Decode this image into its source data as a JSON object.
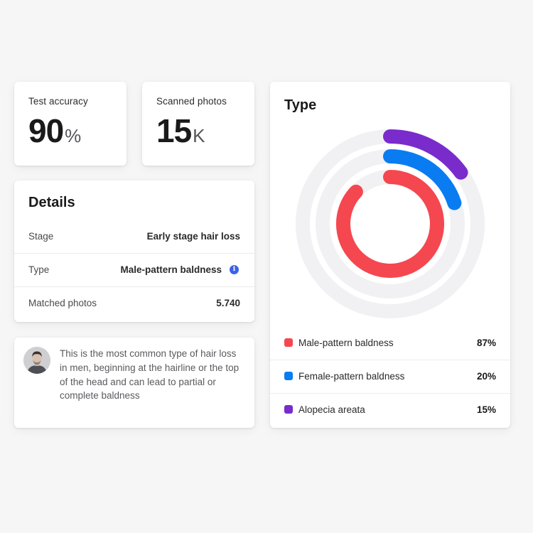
{
  "stats": {
    "accuracy": {
      "label": "Test accuracy",
      "value": "90",
      "unit": "%"
    },
    "scanned": {
      "label": "Scanned photos",
      "value": "15",
      "unit": "K"
    }
  },
  "details": {
    "title": "Details",
    "rows": [
      {
        "key": "Stage",
        "value": "Early stage hair loss"
      },
      {
        "key": "Type",
        "value": "Male-pattern baldness"
      },
      {
        "key": "Matched photos",
        "value": "5.740"
      }
    ],
    "info_icon": "info-icon"
  },
  "note": {
    "avatar_icon": "user-avatar",
    "text": "This is the most common type of hair loss in men, beginning at the hairline or the top of the head and can lead to partial or complete baldness"
  },
  "type_card": {
    "title": "Type",
    "track_color": "#f1f1f3",
    "legend": [
      {
        "label": "Male-pattern baldness",
        "value": "87%",
        "color": "#f5474f"
      },
      {
        "label": "Female-pattern baldness",
        "value": "20%",
        "color": "#0a7cf2"
      },
      {
        "label": "Alopecia areata",
        "value": "15%",
        "color": "#7a2bcc"
      }
    ]
  },
  "chart_data": {
    "type": "radial-bar",
    "categories": [
      "Male-pattern baldness",
      "Female-pattern baldness",
      "Alopecia areata"
    ],
    "values": [
      87,
      20,
      15
    ],
    "colors": [
      "#f5474f",
      "#0a7cf2",
      "#7a2bcc"
    ],
    "title": "Type"
  }
}
